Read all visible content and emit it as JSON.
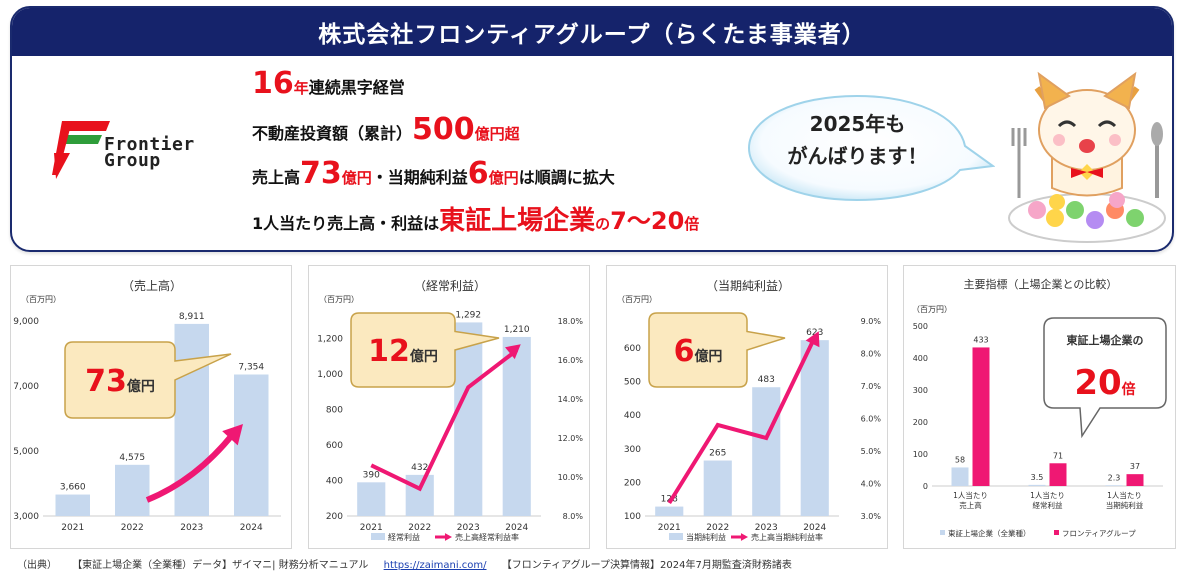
{
  "banner": {
    "title": "株式会社フロンティアグループ（らくたま事業者）",
    "logo_line1": "Frontier",
    "logo_line2": "Group",
    "line1": {
      "num": "16",
      "unit": "年",
      "text": "連続黒字経営"
    },
    "line2": {
      "text": "不動産投資額（累計）",
      "num": "500",
      "unit": "億円超"
    },
    "line3": {
      "text1": "売上高",
      "num1": "73",
      "unit1": "億円",
      "text2": "・当期純利益",
      "num2": "6",
      "unit2": "億円",
      "text3": "は順調に拡大"
    },
    "line4": {
      "text1": "1人当たり売上高・利益は",
      "emph": "東証上場企業",
      "text2": "の",
      "num": "7〜20",
      "unit": "倍"
    },
    "bubble_line1": "2025年も",
    "bubble_line2": "がんばります！"
  },
  "colors": {
    "bar": "#c6d8ee",
    "accent": "#ef1873",
    "red": "#e8111c",
    "navy": "#15236b",
    "callout_bg": "#fbe9bf",
    "callout_border": "#c8a24a"
  },
  "chart_data": [
    {
      "type": "bar",
      "title": "（売上高）",
      "unit": "（百万円）",
      "categories": [
        "2021",
        "2022",
        "2023",
        "2024"
      ],
      "values": [
        3660,
        4575,
        8911,
        7354
      ],
      "value_labels": [
        "3,660",
        "4,575",
        "8,911",
        "7,354"
      ],
      "ylim": [
        3000,
        9000
      ],
      "yticks": [
        3000,
        5000,
        7000,
        9000
      ],
      "ytick_labels": [
        "3,000",
        "5,000",
        "7,000",
        "9,000"
      ],
      "callout": {
        "num": "73",
        "unit": "億円"
      }
    },
    {
      "type": "bar+line",
      "title": "（経常利益）",
      "unit": "（百万円）",
      "categories": [
        "2021",
        "2022",
        "2023",
        "2024"
      ],
      "values": [
        390,
        432,
        1292,
        1210
      ],
      "value_labels": [
        "390",
        "432",
        "1,292",
        "1,210"
      ],
      "ylim": [
        200,
        1300
      ],
      "yticks": [
        200,
        400,
        600,
        800,
        1000,
        1200
      ],
      "ytick_labels": [
        "200",
        "400",
        "600",
        "800",
        "1,000",
        "1,200"
      ],
      "y2lim": [
        8.0,
        18.0
      ],
      "y2ticks": [
        8,
        10,
        12,
        14,
        16,
        18
      ],
      "y2tick_labels": [
        "8.0%",
        "10.0%",
        "12.0%",
        "14.0%",
        "16.0%",
        "18.0%"
      ],
      "line_values": [
        10.6,
        9.4,
        14.6,
        16.5
      ],
      "legend": [
        "経常利益",
        "売上高経常利益率"
      ],
      "callout": {
        "num": "12",
        "unit": "億円"
      }
    },
    {
      "type": "bar+line",
      "title": "（当期純利益）",
      "unit": "（百万円）",
      "categories": [
        "2021",
        "2022",
        "2023",
        "2024"
      ],
      "values": [
        128,
        265,
        483,
        623
      ],
      "value_labels": [
        "128",
        "265",
        "483",
        "623"
      ],
      "ylim": [
        100,
        680
      ],
      "yticks": [
        100,
        200,
        300,
        400,
        500,
        600
      ],
      "ytick_labels": [
        "100",
        "200",
        "300",
        "400",
        "500",
        "600"
      ],
      "y2lim": [
        3.0,
        9.0
      ],
      "y2ticks": [
        3,
        4,
        5,
        6,
        7,
        8,
        9
      ],
      "y2tick_labels": [
        "3.0%",
        "4.0%",
        "5.0%",
        "6.0%",
        "7.0%",
        "8.0%",
        "9.0%"
      ],
      "line_values": [
        3.4,
        5.8,
        5.4,
        8.5
      ],
      "legend": [
        "当期純利益",
        "売上高当期純利益率"
      ],
      "callout": {
        "num": "6",
        "unit": "億円"
      }
    },
    {
      "type": "grouped-bar",
      "title": "主要指標（上場企業との比較）",
      "unit": "（百万円）",
      "categories": [
        "1人当たり\n売上高",
        "1人当たり\n経常利益",
        "1人当たり\n当期純利益"
      ],
      "ylim": [
        0,
        500
      ],
      "yticks": [
        0,
        100,
        200,
        300,
        400,
        500
      ],
      "ytick_labels": [
        "0",
        "100",
        "200",
        "300",
        "400",
        "500"
      ],
      "series": [
        {
          "name": "東証上場企業（全業種）",
          "values": [
            58,
            3.5,
            2.3
          ],
          "labels": [
            "58",
            "3.5",
            "2.3"
          ]
        },
        {
          "name": "フロンティアグループ",
          "values": [
            433,
            71,
            37
          ],
          "labels": [
            "433",
            "71",
            "37"
          ]
        }
      ],
      "callout": {
        "line1": "東証上場企業の",
        "num": "20",
        "unit": "倍"
      }
    }
  ],
  "footer": {
    "source": "（出典）",
    "ref1": "【東証上場企業（全業種）データ】ザイマニ| 財務分析マニュアル",
    "link": "https://zaimani.com/",
    "ref2": "【フロンティアグループ決算情報】2024年7月期監査済財務諸表"
  }
}
